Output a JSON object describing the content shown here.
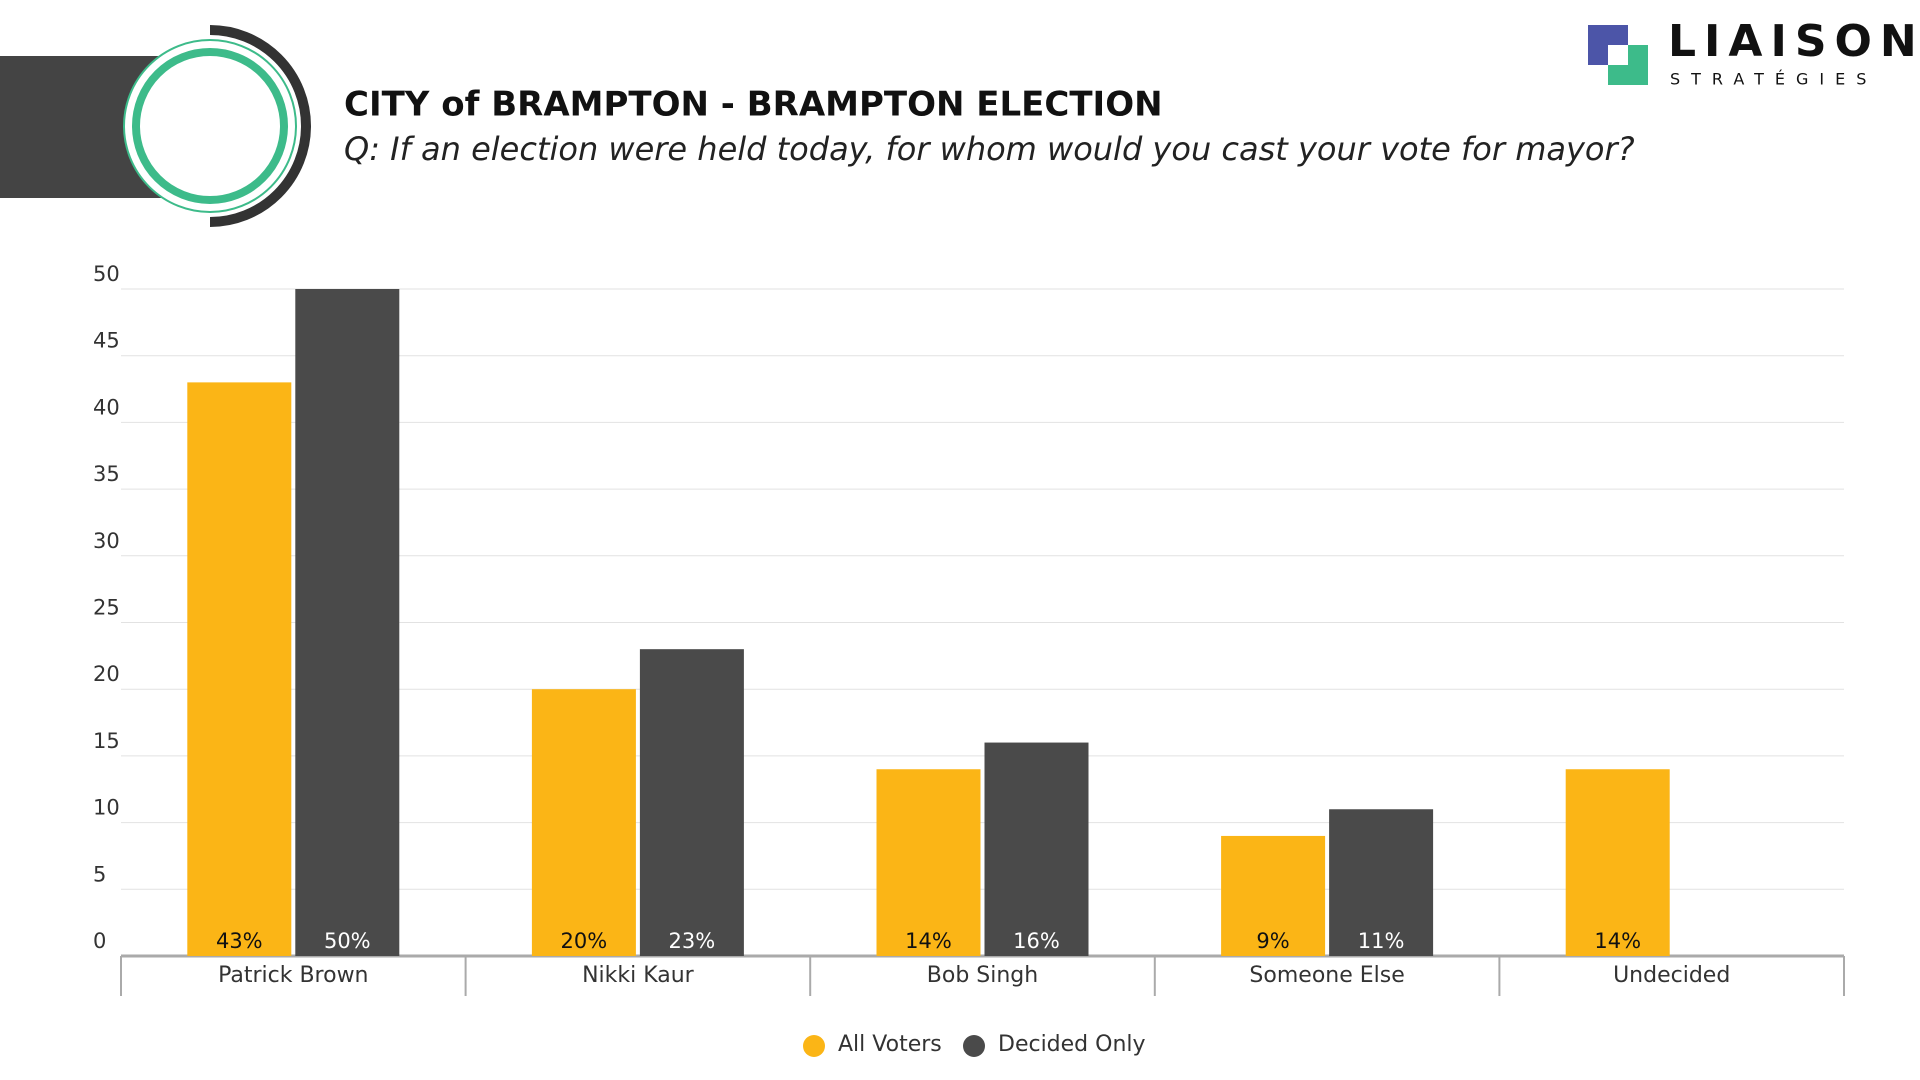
{
  "logo": {
    "name": "LIAISON",
    "tagline": "STRATÉGIES"
  },
  "chart_data": {
    "type": "bar",
    "title": "CITY of BRAMPTON - BRAMPTON ELECTION",
    "subtitle": "Q: If an election were held today, for whom would you cast your vote for mayor?",
    "categories": [
      "Patrick Brown",
      "Nikki Kaur",
      "Bob Singh",
      "Someone Else",
      "Undecided"
    ],
    "series": [
      {
        "name": "All Voters",
        "color": "#fbb516",
        "values": [
          43,
          20,
          14,
          9,
          14
        ],
        "value_labels": [
          "43%",
          "20%",
          "14%",
          "9%",
          "14%"
        ]
      },
      {
        "name": "Decided Only",
        "color": "#4a4a4a",
        "values": [
          50,
          23,
          16,
          11,
          null
        ],
        "value_labels": [
          "50%",
          "23%",
          "16%",
          "11%",
          null
        ]
      }
    ],
    "ylim": [
      0,
      50
    ],
    "yticks": [
      0,
      5,
      10,
      15,
      20,
      25,
      30,
      35,
      40,
      45,
      50
    ],
    "grid": true,
    "legend": "bottom"
  }
}
